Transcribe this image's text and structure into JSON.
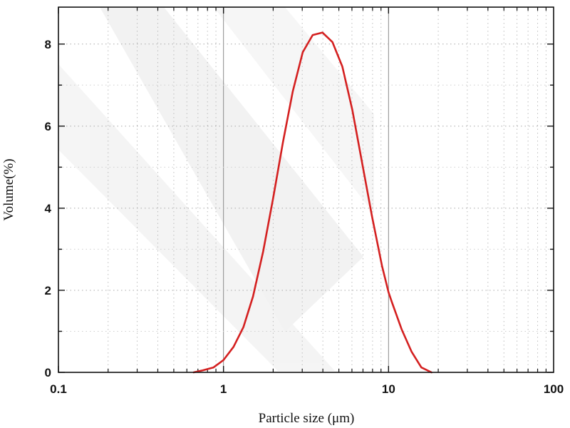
{
  "chart_data": {
    "type": "line",
    "title": "",
    "xlabel": "Particle size (μm)",
    "ylabel": "Volume(%)",
    "x_scale": "log",
    "xlim": [
      0.1,
      100
    ],
    "ylim": [
      0,
      8.9
    ],
    "grid": true,
    "x_ticks": [
      {
        "value": 0.1,
        "label": "0.1"
      },
      {
        "value": 1,
        "label": "1"
      },
      {
        "value": 10,
        "label": "10"
      },
      {
        "value": 100,
        "label": "100"
      }
    ],
    "y_ticks": [
      {
        "value": 0,
        "label": "0"
      },
      {
        "value": 2,
        "label": "2"
      },
      {
        "value": 4,
        "label": "4"
      },
      {
        "value": 6,
        "label": "6"
      },
      {
        "value": 8,
        "label": "8"
      }
    ],
    "series": [
      {
        "color": "#d42020",
        "x": [
          0.66,
          0.75,
          0.87,
          1.0,
          1.15,
          1.32,
          1.51,
          1.74,
          2.0,
          2.29,
          2.63,
          3.02,
          3.47,
          3.98,
          4.57,
          5.25,
          6.03,
          6.92,
          7.94,
          9.12,
          10.0,
          10.5,
          12.0,
          13.8,
          15.8,
          18.2
        ],
        "y": [
          0.0,
          0.05,
          0.12,
          0.3,
          0.62,
          1.1,
          1.85,
          2.95,
          4.25,
          5.6,
          6.85,
          7.8,
          8.22,
          8.28,
          8.05,
          7.45,
          6.4,
          5.1,
          3.8,
          2.6,
          1.95,
          1.7,
          1.05,
          0.5,
          0.12,
          0.0
        ]
      }
    ]
  }
}
